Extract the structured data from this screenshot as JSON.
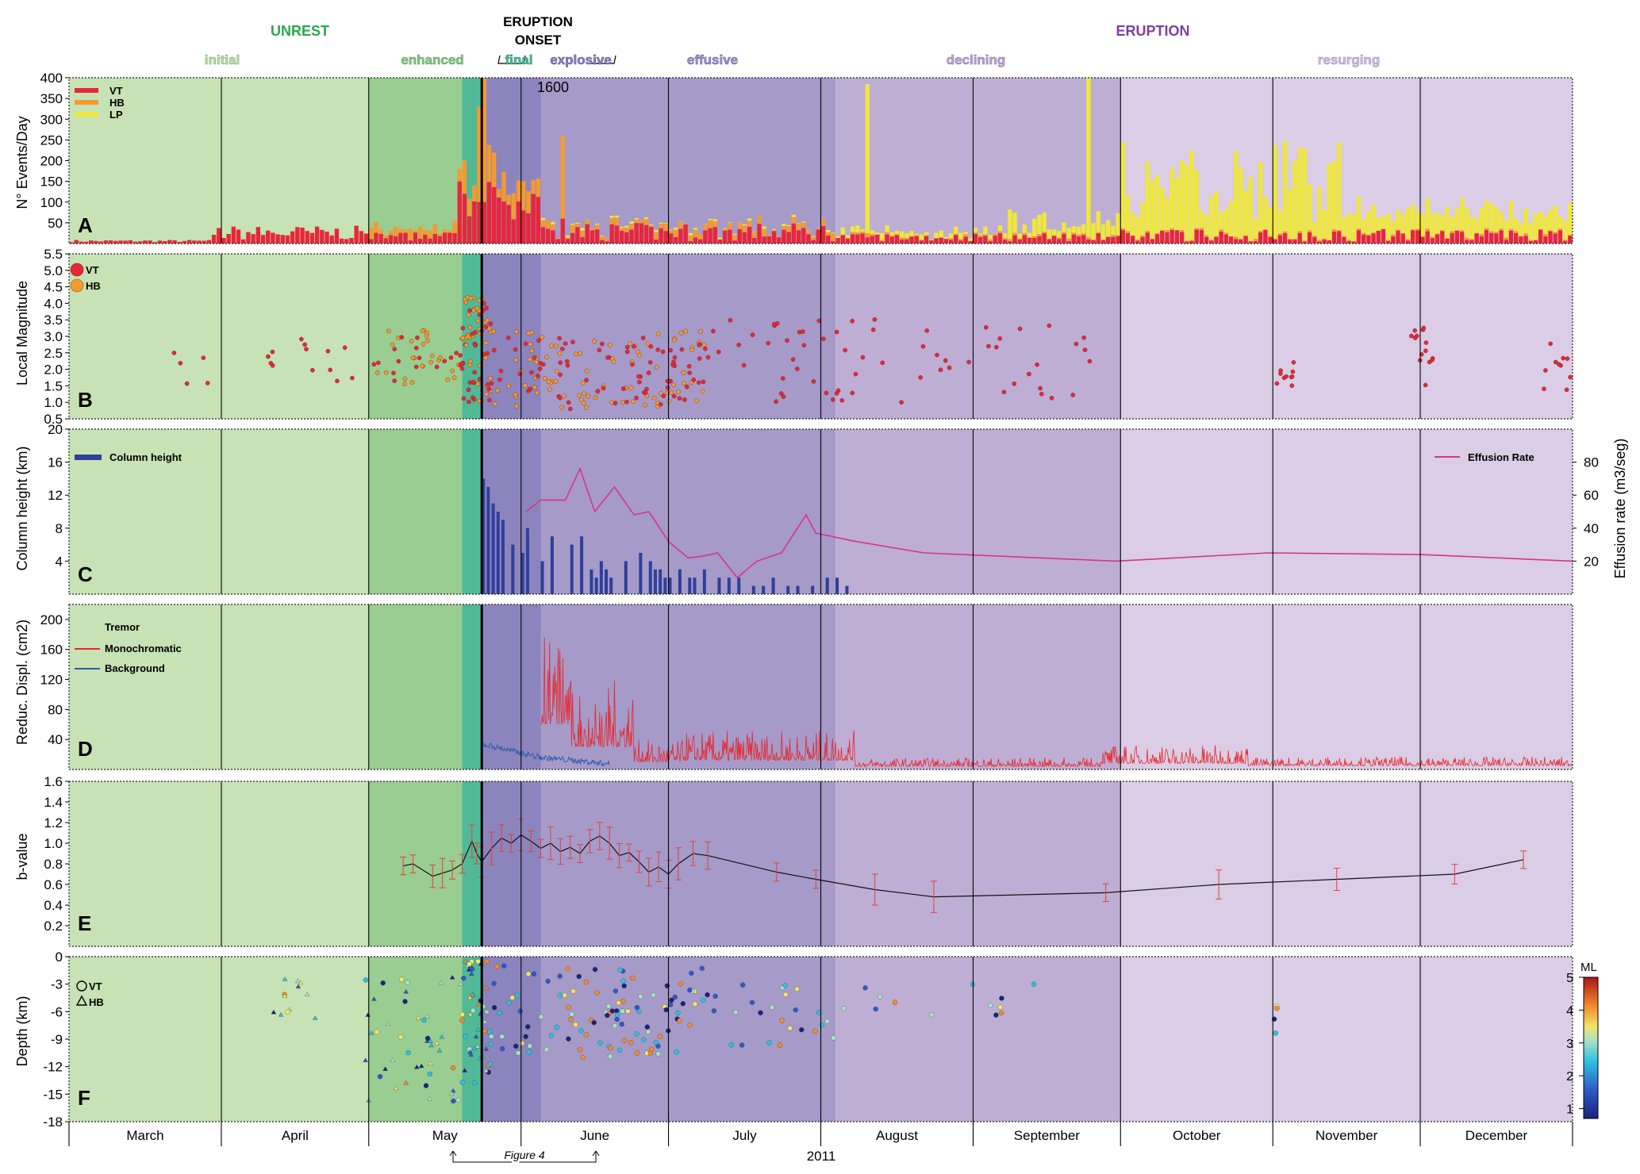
{
  "title": "",
  "colors": {
    "initial": "#c7e2b4",
    "enhanced": "#9acd91",
    "final": "#52b997",
    "explosive": "#8c84bd",
    "effusive": "#a69ac9",
    "declining": "#bfaed3",
    "resurging": "#dacde5",
    "unrest_text": "#2aa84a",
    "eruption_text": "#7e3f9f",
    "vt": "#e8263a",
    "hb": "#f39a32",
    "lp": "#efe83a",
    "column": "#2e3f9b",
    "effusion": "#d6348e",
    "tremor_mono": "#e8262a",
    "tremor_bg": "#2a5aa8"
  },
  "header": {
    "unrest": "UNREST",
    "eruption": "ERUPTION",
    "onset_line1": "ERUPTION",
    "onset_line2": "ONSET",
    "phases": [
      "initial",
      "enhanced",
      "final",
      "explosive",
      "effusive",
      "declining",
      "resurging"
    ]
  },
  "months": [
    "March",
    "April",
    "May",
    "June",
    "July",
    "August",
    "September",
    "October",
    "November",
    "December"
  ],
  "year": "2011",
  "figure4_label": "Figure 4",
  "chart_data": [
    {
      "panel": "A",
      "type": "bar",
      "ylabel": "N° Events/Day",
      "ylim": [
        0,
        400
      ],
      "yticks": [
        "50",
        "100",
        "150",
        "200",
        "250",
        "300",
        "350",
        "400"
      ],
      "annotation": "1600",
      "legend": [
        "VT",
        "HB",
        "LP"
      ],
      "note": "daily counts, stacked (VT bottom, HB, LP top); t = days since 1 March 2011",
      "peaks": [
        {
          "t": 79,
          "vt": 150,
          "hb": 30,
          "lp": 0
        },
        {
          "t": 83,
          "vt": 100,
          "hb": 230,
          "lp": 0
        },
        {
          "t": 84,
          "vt": 100,
          "hb": 1500,
          "lp": 0
        },
        {
          "t": 100,
          "vt": 60,
          "hb": 200,
          "lp": 0
        },
        {
          "t": 162,
          "vt": 15,
          "hb": 10,
          "lp": 360
        },
        {
          "t": 207,
          "vt": 10,
          "hb": 5,
          "lp": 385
        }
      ]
    },
    {
      "panel": "B",
      "type": "scatter",
      "ylabel": "Local Magnitude",
      "ylim": [
        0.5,
        5.5
      ],
      "yticks": [
        "0.5",
        "1.0",
        "1.5",
        "2.0",
        "2.5",
        "3.0",
        "3.5",
        "4.0",
        "4.5",
        "5.0",
        "5.5"
      ],
      "legend": [
        "VT",
        "HB"
      ]
    },
    {
      "panel": "C",
      "type": "bar",
      "ylabel": "Column height (km)",
      "ylim": [
        0,
        20
      ],
      "yticks": [
        "4",
        "8",
        "12",
        "16",
        "20"
      ],
      "y2label": "Effusion rate (m3/seg)",
      "y2ticks": [
        "20",
        "40",
        "60",
        "80"
      ],
      "legend_column": "Column height",
      "legend_effusion": "Effusion Rate",
      "column_height": {
        "t": [
          84,
          85,
          86,
          87,
          88,
          90,
          92,
          93,
          96,
          98,
          102,
          104,
          106,
          107,
          108,
          109,
          110,
          113,
          116,
          118,
          119,
          120,
          121,
          122,
          124,
          126,
          127,
          129,
          132,
          134,
          136,
          139,
          141,
          143,
          146,
          148,
          151,
          154,
          156,
          158
        ],
        "values": [
          14,
          13,
          11,
          10,
          9,
          6,
          5,
          8,
          4,
          7,
          6,
          7,
          3,
          2,
          4,
          3,
          2,
          4,
          5,
          4,
          3,
          3,
          2,
          2,
          3,
          2,
          2,
          3,
          2,
          2,
          2,
          1,
          1,
          2,
          1,
          1,
          1,
          2,
          2,
          1
        ]
      },
      "effusion_rate": {
        "t": [
          93,
          96,
          101,
          104,
          107,
          111,
          115,
          118,
          122,
          126,
          129,
          132,
          136,
          140,
          145,
          150,
          152,
          160,
          174,
          213,
          244,
          275,
          306
        ],
        "values": [
          50,
          57,
          57,
          76,
          50,
          65,
          48,
          50,
          32,
          22,
          23,
          25,
          10,
          20,
          25,
          48,
          37,
          32,
          25,
          20,
          25,
          24,
          20
        ]
      }
    },
    {
      "panel": "D",
      "type": "line",
      "ylabel": "Reduc. Displ. (cm2)",
      "ylim": [
        0,
        220
      ],
      "yticks": [
        "40",
        "80",
        "120",
        "160",
        "200"
      ],
      "legend_title": "Tremor",
      "series": [
        {
          "name": "Monochromatic"
        },
        {
          "name": "Background"
        }
      ]
    },
    {
      "panel": "E",
      "type": "line",
      "ylabel": "b-value",
      "ylim": [
        0.0,
        1.6
      ],
      "yticks": [
        "0.2",
        "0.4",
        "0.6",
        "0.8",
        "1.0",
        "1.2",
        "1.4",
        "1.6"
      ],
      "t": [
        68,
        70,
        74,
        76,
        78,
        80,
        82,
        83,
        84,
        86,
        88,
        90,
        92,
        94,
        96,
        98,
        100,
        102,
        104,
        106,
        108,
        110,
        112,
        114,
        116,
        118,
        120,
        122,
        124,
        127,
        130,
        144,
        152,
        164,
        176,
        211,
        234,
        258,
        282,
        296
      ],
      "values": [
        0.78,
        0.8,
        0.68,
        0.71,
        0.74,
        0.8,
        1.02,
        0.9,
        0.82,
        0.95,
        1.05,
        1.0,
        1.08,
        1.02,
        0.95,
        1.0,
        0.92,
        0.96,
        0.9,
        1.02,
        1.07,
        1.0,
        0.88,
        0.91,
        0.82,
        0.72,
        0.77,
        0.7,
        0.8,
        0.9,
        0.88,
        0.72,
        0.65,
        0.55,
        0.48,
        0.52,
        0.6,
        0.65,
        0.7,
        0.84
      ]
    },
    {
      "panel": "F",
      "type": "scatter",
      "ylabel": "Depth (km)",
      "ylim": [
        -18,
        0
      ],
      "yticks": [
        "0",
        "-3",
        "-6",
        "-9",
        "-12",
        "-15",
        "-18"
      ],
      "legend": [
        "VT",
        "HB"
      ],
      "colorbar_label": "ML",
      "colorbar_ticks": [
        "1",
        "2",
        "3",
        "4",
        "5"
      ]
    }
  ]
}
